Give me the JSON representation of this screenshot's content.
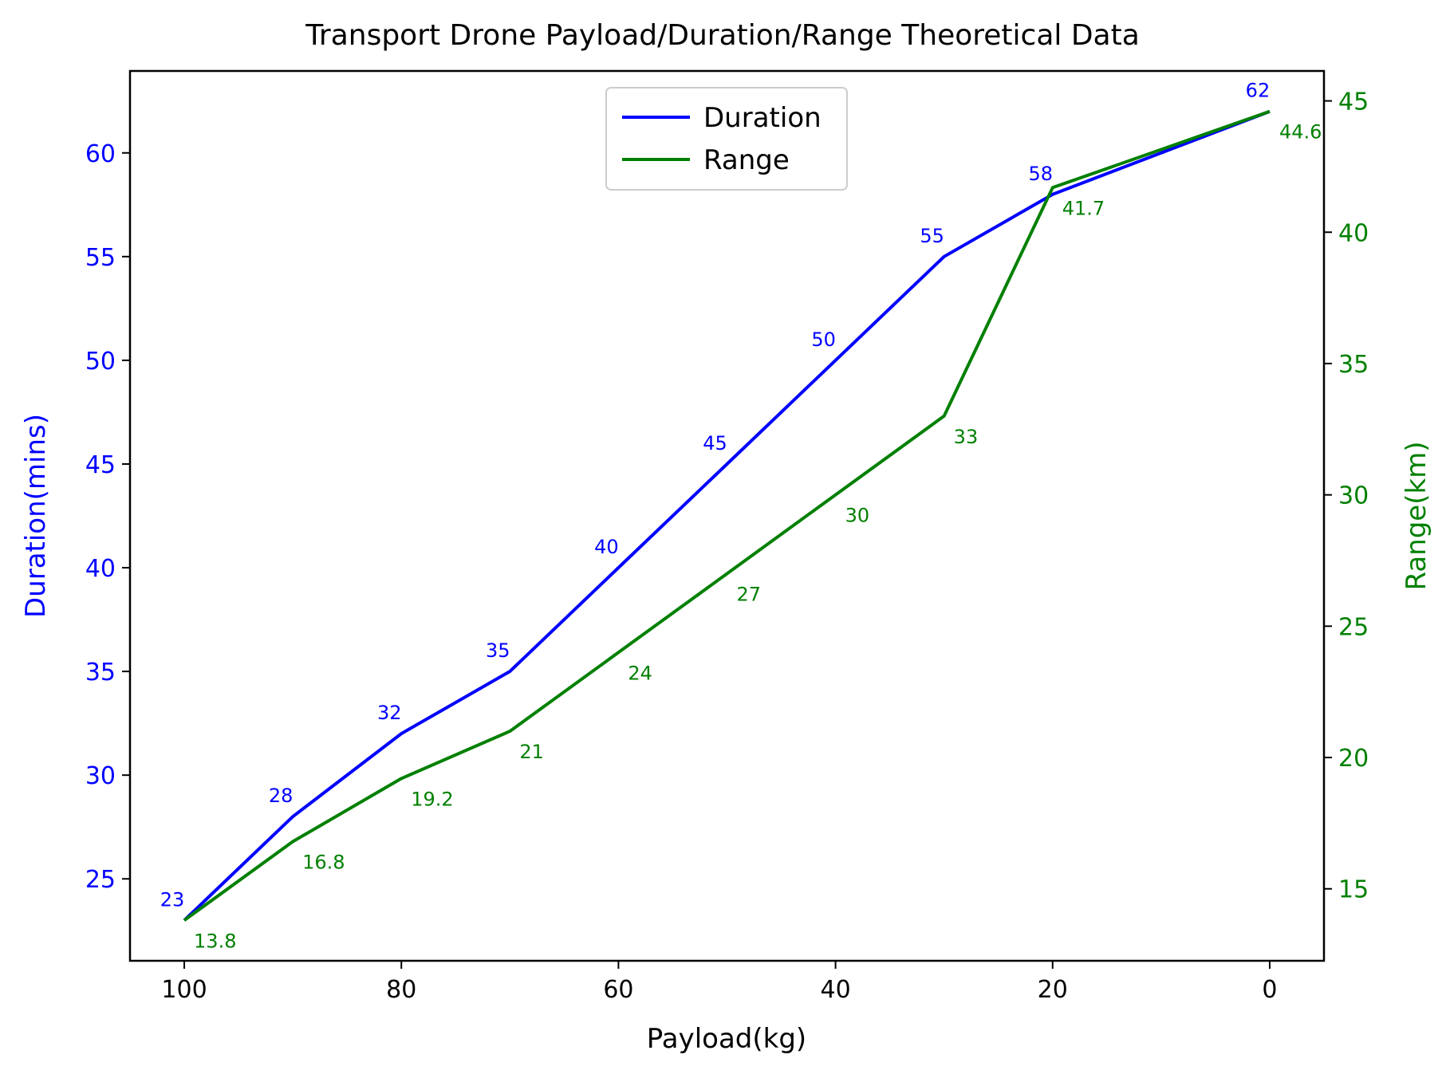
{
  "chart_data": {
    "type": "line",
    "title": "Transport Drone Payload/Duration/Range Theoretical Data",
    "xlabel": "Payload(kg)",
    "ylabel_left": "Duration(mins)",
    "ylabel_right": "Range(km)",
    "x": [
      100,
      90,
      80,
      70,
      60,
      50,
      40,
      30,
      20,
      0
    ],
    "x_ticks": [
      100,
      80,
      60,
      40,
      20,
      0
    ],
    "x_axis_inverted": true,
    "xlim": [
      105,
      -5
    ],
    "y_left_ticks": [
      25,
      30,
      35,
      40,
      45,
      50,
      55,
      60
    ],
    "y_left_lim": [
      21.05,
      63.95
    ],
    "y_right_ticks": [
      15,
      20,
      25,
      30,
      35,
      40,
      45
    ],
    "y_right_lim": [
      12.26,
      46.14
    ],
    "series": [
      {
        "name": "Duration",
        "axis": "left",
        "color": "#0000ff",
        "values": [
          23,
          28,
          32,
          35,
          40,
          45,
          50,
          55,
          58,
          62
        ],
        "labels": [
          "23",
          "28",
          "32",
          "35",
          "40",
          "45",
          "50",
          "55",
          "58",
          "62"
        ]
      },
      {
        "name": "Range",
        "axis": "right",
        "color": "#008000",
        "values": [
          13.8,
          16.8,
          19.2,
          21,
          24,
          27,
          30,
          33,
          41.7,
          44.6
        ],
        "labels": [
          "13.8",
          "16.8",
          "19.2",
          "21",
          "24",
          "27",
          "30",
          "33",
          "41.7",
          "44.6"
        ]
      }
    ],
    "legend": {
      "position": "top-center",
      "entries": [
        "Duration",
        "Range"
      ]
    },
    "grid": false
  }
}
